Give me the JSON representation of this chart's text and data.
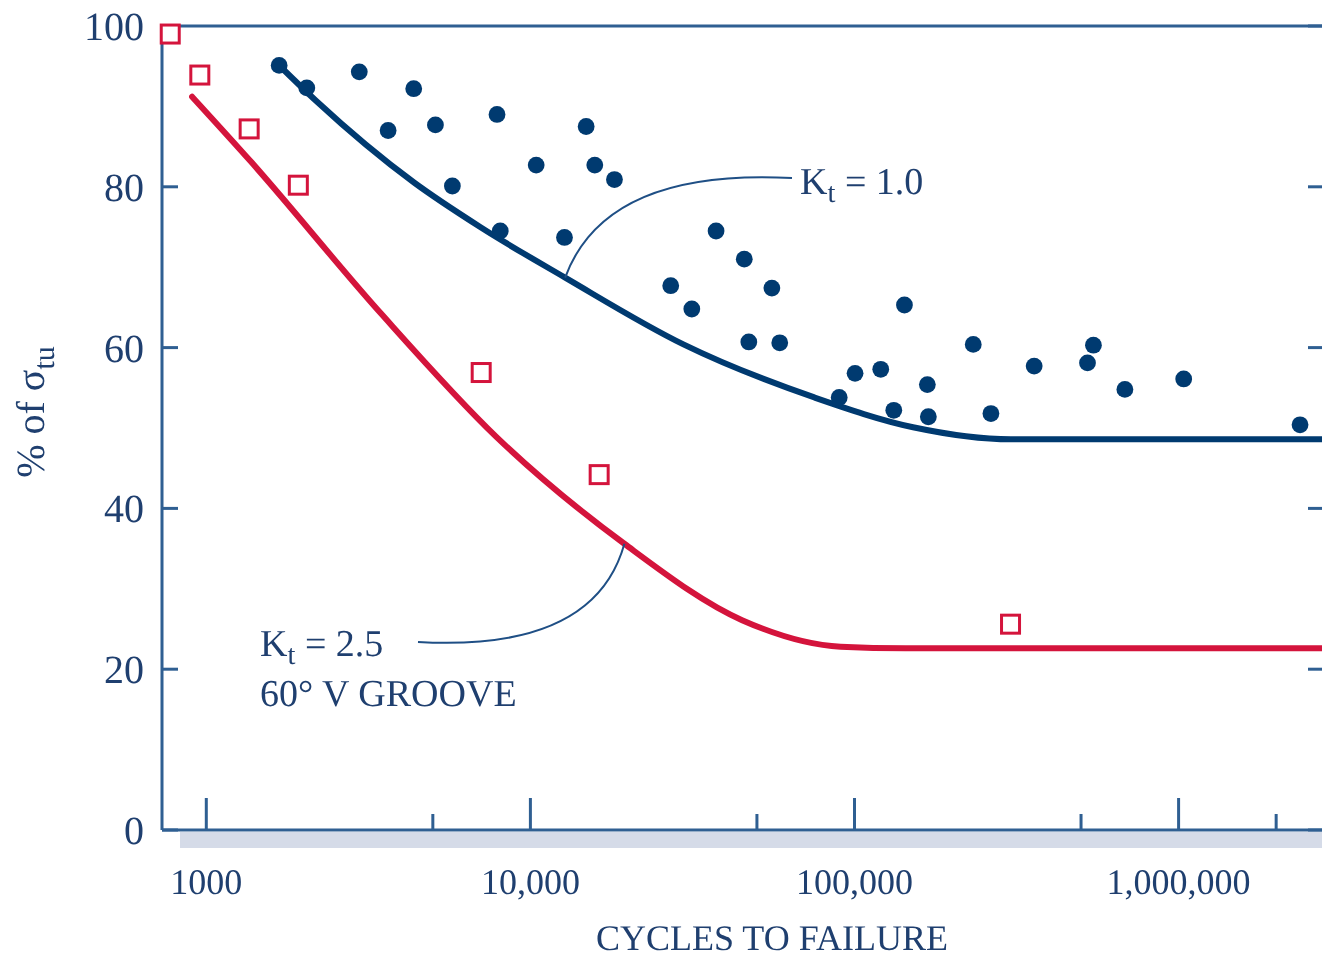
{
  "chart_data": {
    "type": "scatter",
    "xlabel": "CYCLES TO FAILURE",
    "ylabel": "% of σ$_{tu}$",
    "log": "x",
    "grid": false,
    "xlim": [
      730,
      2770000
    ],
    "xticks": [
      1000,
      {
        "value": 5000,
        "label": null
      },
      {
        "value": 10000,
        "label": "10,000"
      },
      {
        "value": 50000,
        "label": null
      },
      {
        "value": 100000,
        "label": "100,000"
      },
      {
        "value": 500000,
        "label": null
      },
      {
        "value": 1000000,
        "label": "1,000,000"
      },
      {
        "value": 2000000,
        "label": null
      }
    ],
    "ylim": [
      0,
      100
    ],
    "yticks": [
      0,
      20,
      40,
      60,
      80,
      100
    ],
    "annotations": [
      {
        "text": "K$_{t}$ = 1.0",
        "x": 12800,
        "y": 68.7
      },
      {
        "text": "K$_{t}$ = 2.5",
        "x": 19500,
        "y": 35.6
      },
      "60° V GROOVE"
    ],
    "series": [
      {
        "type": "line",
        "color": "#003a70",
        "line_style": "solid",
        "x": [
          1678,
          2180,
          4385,
          7000,
          12800,
          29660,
          75200,
          151600,
          304000,
          2770000
        ],
        "values": [
          95.1,
          90.7,
          80.5,
          75,
          68.7,
          60.4,
          53.8,
          50.1,
          48.6,
          48.6
        ]
      },
      {
        "type": "line",
        "color": "#d4143c",
        "line_style": "solid",
        "x": [
          904,
          1368,
          3466,
          7850,
          19500,
          45000,
          90600,
          144000,
          2770000
        ],
        "values": [
          91.2,
          83.2,
          64.2,
          48.9,
          35.6,
          26.1,
          22.8,
          22.6,
          22.6
        ]
      },
      {
        "color": "#003a70",
        "marker": "circle",
        "x": [
          1678,
          2042,
          2965,
          3639,
          4365,
          5093,
          5745,
          7889,
          8073,
          10420,
          12740,
          14860,
          15800,
          18170,
          27100,
          31480,
          37400,
          45700,
          55600,
          47200,
          58800,
          142600,
          89700,
          100400,
          120500,
          132200,
          167800,
          169000,
          232500,
          263600,
          358400,
          523500,
          546000,
          682800,
          1037000,
          2370000
        ],
        "values": [
          95.1,
          92.3,
          94.3,
          87.0,
          92.2,
          87.7,
          80.1,
          89.0,
          74.5,
          82.7,
          73.7,
          87.5,
          82.7,
          80.9,
          67.7,
          64.8,
          74.5,
          71.0,
          67.4,
          60.7,
          60.6,
          65.3,
          53.8,
          56.8,
          57.3,
          52.2,
          55.4,
          51.4,
          60.4,
          51.8,
          57.7,
          58.1,
          60.3,
          54.8,
          56.1,
          50.4
        ]
      },
      {
        "color": "#d4143c",
        "marker": "square",
        "x": [
          774,
          955,
          1356,
          1923,
          7050,
          16300,
          303000
        ],
        "values": [
          99,
          93.9,
          87.2,
          80.2,
          56.9,
          44.2,
          25.6
        ]
      }
    ]
  }
}
